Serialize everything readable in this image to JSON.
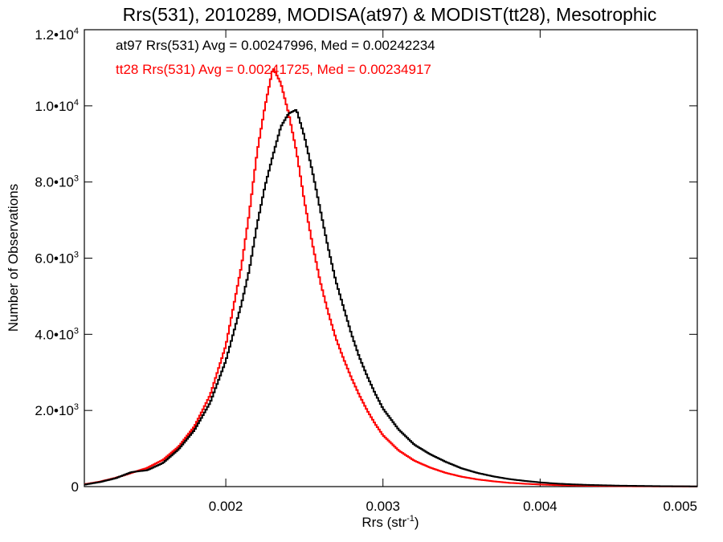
{
  "chart_data": {
    "type": "line",
    "title": "Rrs(531), 2010289, MODISA(at97) & MODIST(tt28), Mesotrophic",
    "xlabel_main": "Rrs (str",
    "xlabel_exp": "-1",
    "xlabel_close": ")",
    "ylabel": "Number of Observations",
    "xlim": [
      0.0011,
      0.005
    ],
    "ylim": [
      0,
      12000
    ],
    "x_ticks": [
      {
        "value": 0.002,
        "label": "0.002"
      },
      {
        "value": 0.003,
        "label": "0.003"
      },
      {
        "value": 0.004,
        "label": "0.004"
      },
      {
        "value": 0.005,
        "label": "0.005"
      }
    ],
    "y_ticks": [
      {
        "value": 0,
        "mant": "0",
        "exp": ""
      },
      {
        "value": 2000,
        "mant": "2.0•10",
        "exp": "3"
      },
      {
        "value": 4000,
        "mant": "4.0•10",
        "exp": "3"
      },
      {
        "value": 6000,
        "mant": "6.0•10",
        "exp": "3"
      },
      {
        "value": 8000,
        "mant": "8.0•10",
        "exp": "3"
      },
      {
        "value": 10000,
        "mant": "1.0•10",
        "exp": "4"
      },
      {
        "value": 12000,
        "mant": "1.2•10",
        "exp": "4"
      }
    ],
    "grid": false,
    "series": [
      {
        "name": "at97",
        "color": "#000000",
        "annotation": "at97 Rrs(531) Avg = 0.00247996, Med = 0.00242234",
        "x": [
          0.0011,
          0.0012,
          0.0013,
          0.0014,
          0.0015,
          0.0016,
          0.0017,
          0.0018,
          0.0019,
          0.002,
          0.0021,
          0.00215,
          0.0022,
          0.00225,
          0.0023,
          0.00235,
          0.0024,
          0.00245,
          0.0025,
          0.00255,
          0.0026,
          0.00265,
          0.0027,
          0.00275,
          0.0028,
          0.00285,
          0.0029,
          0.00295,
          0.003,
          0.0031,
          0.0032,
          0.0033,
          0.0034,
          0.0035,
          0.0036,
          0.0037,
          0.0038,
          0.0039,
          0.004,
          0.0041,
          0.0042,
          0.0043,
          0.0044,
          0.0045,
          0.0046,
          0.0047,
          0.0048,
          0.0049,
          0.005
        ],
        "y": [
          50,
          120,
          220,
          380,
          430,
          620,
          980,
          1480,
          2200,
          3300,
          4800,
          5700,
          6900,
          7900,
          8700,
          9450,
          9800,
          9900,
          9200,
          8300,
          7300,
          6300,
          5400,
          4700,
          4000,
          3400,
          2900,
          2450,
          2050,
          1500,
          1100,
          850,
          650,
          480,
          360,
          270,
          200,
          150,
          110,
          80,
          60,
          45,
          35,
          25,
          20,
          15,
          10,
          8,
          5
        ]
      },
      {
        "name": "tt28",
        "color": "#ff0000",
        "annotation": "tt28 Rrs(531) Avg = 0.00241725, Med = 0.00234917",
        "x": [
          0.0011,
          0.0012,
          0.0013,
          0.0014,
          0.0015,
          0.0016,
          0.0017,
          0.0018,
          0.0019,
          0.002,
          0.0021,
          0.00215,
          0.0022,
          0.00225,
          0.0023,
          0.00235,
          0.0024,
          0.00245,
          0.0025,
          0.00255,
          0.0026,
          0.00265,
          0.0027,
          0.00275,
          0.0028,
          0.00285,
          0.0029,
          0.00295,
          0.003,
          0.0031,
          0.0032,
          0.0033,
          0.0034,
          0.0035,
          0.0036,
          0.0037,
          0.0038,
          0.0039,
          0.004,
          0.0041,
          0.0042,
          0.0043,
          0.0044,
          0.0045,
          0.0046,
          0.0047,
          0.0048,
          0.0049,
          0.005
        ],
        "y": [
          60,
          130,
          230,
          360,
          490,
          700,
          1050,
          1580,
          2400,
          3700,
          5800,
          7200,
          8800,
          10000,
          11000,
          10600,
          9800,
          8800,
          7500,
          6400,
          5400,
          4600,
          3900,
          3350,
          2850,
          2400,
          2000,
          1650,
          1350,
          950,
          680,
          500,
          360,
          260,
          190,
          140,
          100,
          75,
          55,
          40,
          30,
          22,
          16,
          12,
          9,
          7,
          5,
          4,
          3
        ]
      }
    ]
  }
}
